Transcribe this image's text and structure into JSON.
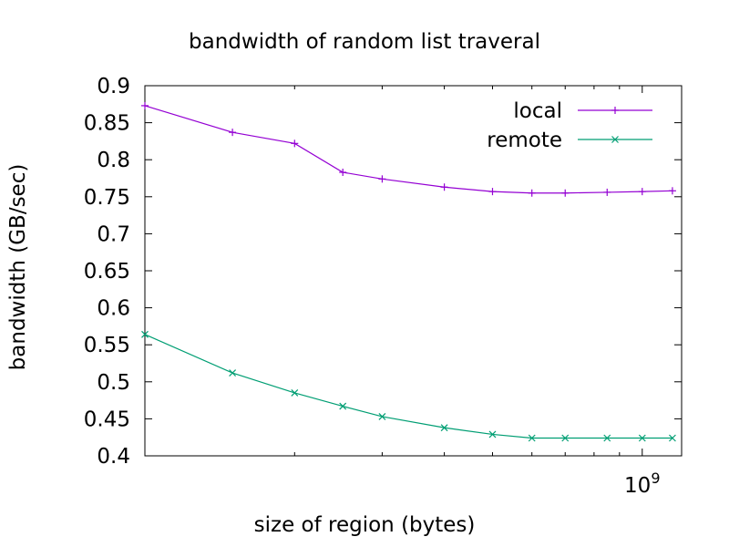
{
  "chart_data": {
    "type": "line",
    "title": "bandwidth of random list traveral",
    "xlabel": "size of region (bytes)",
    "ylabel": "bandwidth (GB/sec)",
    "x_scale": "log",
    "xlim": [
      100000000,
      1200000000
    ],
    "ylim": [
      0.4,
      0.9
    ],
    "x_tick_labels": [
      "10^9"
    ],
    "y_ticks": [
      0.4,
      0.45,
      0.5,
      0.55,
      0.6,
      0.65,
      0.7,
      0.75,
      0.8,
      0.85,
      0.9
    ],
    "y_tick_labels": [
      "0.4",
      "0.45",
      "0.5",
      "0.55",
      "0.6",
      "0.65",
      "0.7",
      "0.75",
      "0.8",
      "0.85",
      "0.9"
    ],
    "x": [
      100000000,
      150000000,
      200000000,
      250000000,
      300000000,
      400000000,
      500000000,
      600000000,
      700000000,
      850000000,
      1000000000,
      1150000000
    ],
    "series": [
      {
        "name": "local",
        "color": "#9400d3",
        "marker": "plus",
        "values": [
          0.873,
          0.837,
          0.822,
          0.783,
          0.774,
          0.763,
          0.757,
          0.755,
          0.755,
          0.756,
          0.757,
          0.758
        ]
      },
      {
        "name": "remote",
        "color": "#009e73",
        "marker": "cross",
        "values": [
          0.564,
          0.512,
          0.485,
          0.467,
          0.453,
          0.438,
          0.429,
          0.424,
          0.424,
          0.424,
          0.424,
          0.424
        ]
      }
    ],
    "legend_position": "top-right",
    "grid": false
  }
}
